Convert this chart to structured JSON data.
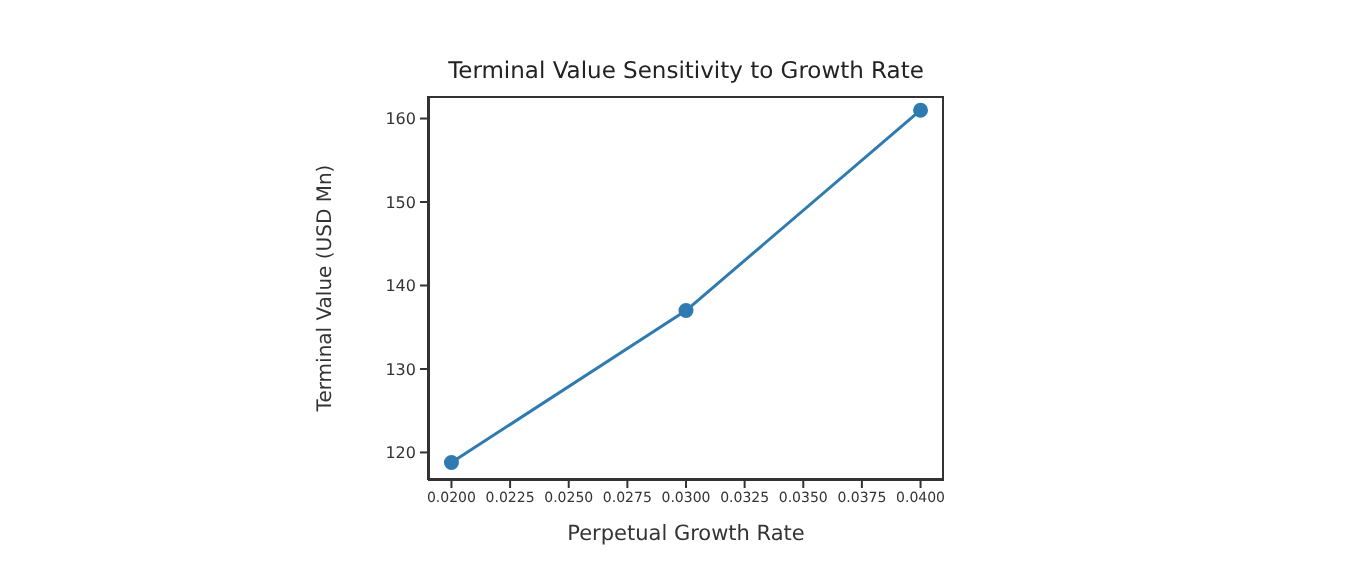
{
  "chart_data": {
    "type": "line",
    "title": "Terminal Value Sensitivity to Growth Rate",
    "xlabel": "Perpetual Growth Rate",
    "ylabel": "Terminal Value (USD Mn)",
    "x": [
      0.02,
      0.03,
      0.04
    ],
    "series": [
      {
        "color": "#2f7bb0",
        "values": [
          118.8,
          137,
          161
        ]
      }
    ],
    "xlim": [
      0.019,
      0.041
    ],
    "xticks": [
      {
        "value": 0.02,
        "label": "0.0200"
      },
      {
        "value": 0.0225,
        "label": "0.0225"
      },
      {
        "value": 0.025,
        "label": "0.0250"
      },
      {
        "value": 0.0275,
        "label": "0.0275"
      },
      {
        "value": 0.03,
        "label": "0.0300"
      },
      {
        "value": 0.0325,
        "label": "0.0325"
      },
      {
        "value": 0.035,
        "label": "0.0350"
      },
      {
        "value": 0.0375,
        "label": "0.0375"
      },
      {
        "value": 0.04,
        "label": "0.0400"
      }
    ],
    "ylim": [
      116.7,
      162.7
    ],
    "yticks": [
      120,
      130,
      140,
      150,
      160
    ],
    "grid": false,
    "legend": false,
    "marker": "circle",
    "line_style": "solid"
  }
}
